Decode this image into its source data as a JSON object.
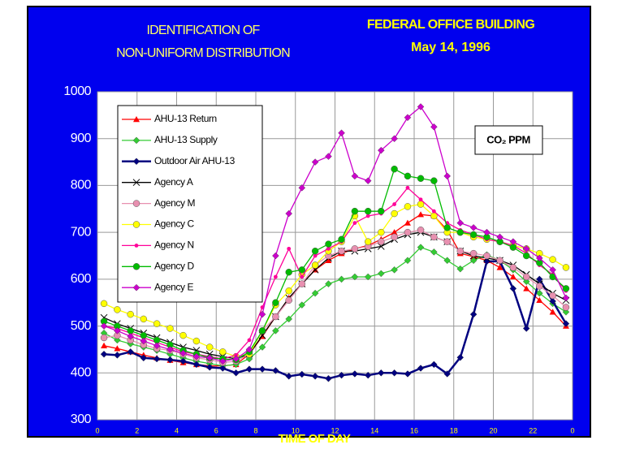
{
  "chart_data": {
    "type": "line",
    "title": [
      "IDENTIFICATION OF",
      "NON-UNIFORM DISTRIBUTION"
    ],
    "subtitle": [
      "FEDERAL OFFICE BUILDING",
      "May 14, 1996"
    ],
    "annotation": "CO₂ PPM",
    "x_label": "TIME OF DAY",
    "x": [
      0.33,
      1,
      1.67,
      2.33,
      3,
      3.67,
      4.33,
      5,
      5.67,
      6.33,
      7,
      7.67,
      8.33,
      9,
      9.67,
      10.33,
      11,
      11.67,
      12.33,
      13,
      13.67,
      14.33,
      15,
      15.67,
      16.33,
      17,
      17.67,
      18.33,
      19,
      19.67,
      20.33,
      21,
      21.67,
      22.33,
      23,
      23.67
    ],
    "xlim": [
      0,
      24
    ],
    "xticks": [
      0,
      2,
      4,
      6,
      8,
      10,
      12,
      14,
      16,
      18,
      20,
      22,
      {
        "value": 24,
        "label": "0"
      }
    ],
    "ylim": [
      300,
      1000
    ],
    "yticks": [
      300,
      400,
      500,
      600,
      700,
      800,
      900,
      1000
    ],
    "grid": true,
    "series": [
      {
        "name": "AHU-13 Return",
        "color": "#ff0000",
        "marker": "triangle",
        "values": [
          458,
          452,
          445,
          438,
          432,
          427,
          422,
          418,
          415,
          415,
          418,
          440,
          478,
          520,
          560,
          590,
          620,
          640,
          655,
          665,
          672,
          685,
          700,
          720,
          738,
          735,
          705,
          655,
          648,
          640,
          625,
          605,
          580,
          555,
          530,
          500
        ]
      },
      {
        "name": "AHU-13 Supply",
        "color": "#33cc33",
        "marker": "diamond",
        "values": [
          485,
          470,
          462,
          455,
          448,
          440,
          432,
          425,
          420,
          415,
          418,
          430,
          455,
          490,
          515,
          545,
          570,
          590,
          600,
          605,
          605,
          612,
          620,
          640,
          668,
          658,
          640,
          622,
          640,
          652,
          640,
          620,
          595,
          570,
          548,
          530
        ]
      },
      {
        "name": "Outdoor Air AHU-13",
        "color": "#000080",
        "marker": "diamond",
        "values": [
          440,
          438,
          445,
          432,
          430,
          428,
          425,
          418,
          412,
          410,
          400,
          408,
          408,
          405,
          393,
          397,
          393,
          388,
          395,
          398,
          395,
          400,
          400,
          398,
          410,
          418,
          398,
          433,
          525,
          638,
          638,
          580,
          495,
          600,
          553,
          505
        ]
      },
      {
        "name": "Agency A",
        "color": "#000000",
        "marker": "x",
        "values": [
          518,
          505,
          495,
          485,
          475,
          465,
          455,
          448,
          440,
          435,
          430,
          440,
          480,
          520,
          560,
          590,
          620,
          645,
          660,
          660,
          665,
          670,
          685,
          695,
          700,
          690,
          680,
          660,
          650,
          645,
          640,
          630,
          610,
          590,
          570,
          555
        ]
      },
      {
        "name": "Agency M",
        "color": "#e890b0",
        "marker": "circle",
        "values": [
          475,
          480,
          470,
          460,
          452,
          448,
          440,
          432,
          428,
          422,
          425,
          440,
          490,
          520,
          555,
          590,
          630,
          650,
          660,
          665,
          670,
          680,
          690,
          700,
          705,
          690,
          680,
          660,
          655,
          650,
          640,
          625,
          605,
          585,
          565,
          540
        ]
      },
      {
        "name": "Agency C",
        "color": "#ffff00",
        "marker": "circle",
        "values": [
          548,
          535,
          525,
          515,
          505,
          495,
          480,
          468,
          455,
          445,
          435,
          440,
          490,
          545,
          575,
          610,
          630,
          660,
          680,
          735,
          680,
          700,
          740,
          755,
          760,
          735,
          700,
          700,
          690,
          685,
          680,
          672,
          665,
          655,
          642,
          625
        ]
      },
      {
        "name": "Agency N",
        "color": "#ff0099",
        "marker": "dot",
        "values": [
          500,
          495,
          485,
          475,
          465,
          455,
          445,
          440,
          435,
          430,
          438,
          470,
          540,
          605,
          665,
          605,
          650,
          665,
          680,
          720,
          735,
          740,
          760,
          795,
          770,
          745,
          720,
          705,
          695,
          685,
          680,
          672,
          655,
          630,
          610,
          575
        ]
      },
      {
        "name": "Agency D",
        "color": "#00bb00",
        "marker": "circle",
        "values": [
          510,
          500,
          490,
          480,
          470,
          460,
          448,
          440,
          432,
          430,
          428,
          445,
          490,
          550,
          615,
          620,
          660,
          675,
          685,
          745,
          745,
          745,
          835,
          820,
          815,
          810,
          710,
          700,
          695,
          690,
          680,
          668,
          650,
          635,
          605,
          580
        ]
      },
      {
        "name": "Agency E",
        "color": "#cc00cc",
        "marker": "diamond",
        "values": [
          500,
          490,
          478,
          468,
          458,
          450,
          442,
          435,
          432,
          425,
          430,
          450,
          525,
          650,
          740,
          795,
          850,
          862,
          912,
          820,
          810,
          875,
          900,
          945,
          968,
          925,
          820,
          720,
          710,
          700,
          690,
          680,
          665,
          645,
          620,
          560
        ]
      }
    ]
  }
}
